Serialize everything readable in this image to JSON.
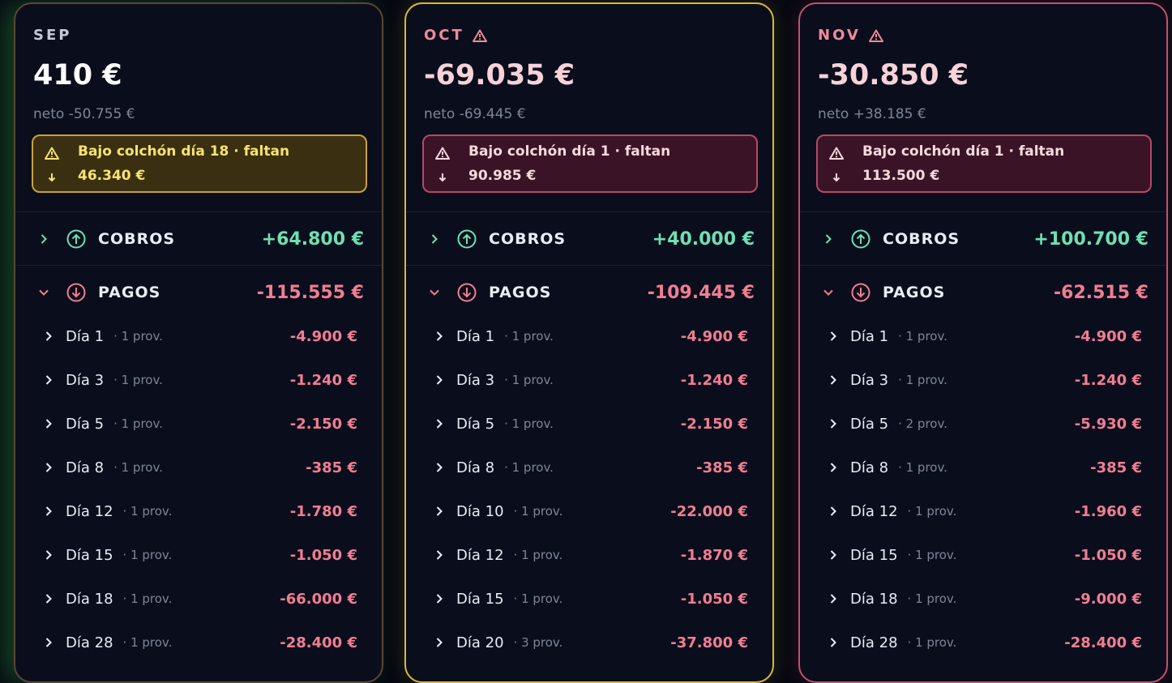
{
  "months": [
    {
      "name": "SEP",
      "warn": false,
      "balance": "410 €",
      "net": "neto -50.755 €",
      "alert": "Bajo colchón día 18 · faltan",
      "alert_amount": "46.340 €",
      "cobros": {
        "label": "COBROS",
        "amount": "+64.800 €"
      },
      "pagos": {
        "label": "PAGOS",
        "amount": "-115.555 €"
      },
      "days": [
        {
          "day": "Día 1",
          "prov": "· 1 prov.",
          "amount": "-4.900 €"
        },
        {
          "day": "Día 3",
          "prov": "· 1 prov.",
          "amount": "-1.240 €"
        },
        {
          "day": "Día 5",
          "prov": "· 1 prov.",
          "amount": "-2.150 €"
        },
        {
          "day": "Día 8",
          "prov": "· 1 prov.",
          "amount": "-385 €"
        },
        {
          "day": "Día 12",
          "prov": "· 1 prov.",
          "amount": "-1.780 €"
        },
        {
          "day": "Día 15",
          "prov": "· 1 prov.",
          "amount": "-1.050 €"
        },
        {
          "day": "Día 18",
          "prov": "· 1 prov.",
          "amount": "-66.000 €"
        },
        {
          "day": "Día 28",
          "prov": "· 1 prov.",
          "amount": "-28.400 €"
        }
      ]
    },
    {
      "name": "OCT",
      "warn": true,
      "balance": "-69.035 €",
      "net": "neto -69.445 €",
      "alert": "Bajo colchón día 1 · faltan",
      "alert_amount": "90.985 €",
      "cobros": {
        "label": "COBROS",
        "amount": "+40.000 €"
      },
      "pagos": {
        "label": "PAGOS",
        "amount": "-109.445 €"
      },
      "days": [
        {
          "day": "Día 1",
          "prov": "· 1 prov.",
          "amount": "-4.900 €"
        },
        {
          "day": "Día 3",
          "prov": "· 1 prov.",
          "amount": "-1.240 €"
        },
        {
          "day": "Día 5",
          "prov": "· 1 prov.",
          "amount": "-2.150 €"
        },
        {
          "day": "Día 8",
          "prov": "· 1 prov.",
          "amount": "-385 €"
        },
        {
          "day": "Día 10",
          "prov": "· 1 prov.",
          "amount": "-22.000 €"
        },
        {
          "day": "Día 12",
          "prov": "· 1 prov.",
          "amount": "-1.870 €"
        },
        {
          "day": "Día 15",
          "prov": "· 1 prov.",
          "amount": "-1.050 €"
        },
        {
          "day": "Día 20",
          "prov": "· 3 prov.",
          "amount": "-37.800 €"
        }
      ]
    },
    {
      "name": "NOV",
      "warn": true,
      "balance": "-30.850 €",
      "net": "neto +38.185 €",
      "alert": "Bajo colchón día 1 · faltan",
      "alert_amount": "113.500 €",
      "cobros": {
        "label": "COBROS",
        "amount": "+100.700 €"
      },
      "pagos": {
        "label": "PAGOS",
        "amount": "-62.515 €"
      },
      "days": [
        {
          "day": "Día 1",
          "prov": "· 1 prov.",
          "amount": "-4.900 €"
        },
        {
          "day": "Día 3",
          "prov": "· 1 prov.",
          "amount": "-1.240 €"
        },
        {
          "day": "Día 5",
          "prov": "· 2 prov.",
          "amount": "-5.930 €"
        },
        {
          "day": "Día 8",
          "prov": "· 1 prov.",
          "amount": "-385 €"
        },
        {
          "day": "Día 12",
          "prov": "· 1 prov.",
          "amount": "-1.960 €"
        },
        {
          "day": "Día 15",
          "prov": "· 1 prov.",
          "amount": "-1.050 €"
        },
        {
          "day": "Día 18",
          "prov": "· 1 prov.",
          "amount": "-9.000 €"
        },
        {
          "day": "Día 28",
          "prov": "· 1 prov.",
          "amount": "-28.400 €"
        }
      ]
    }
  ]
}
